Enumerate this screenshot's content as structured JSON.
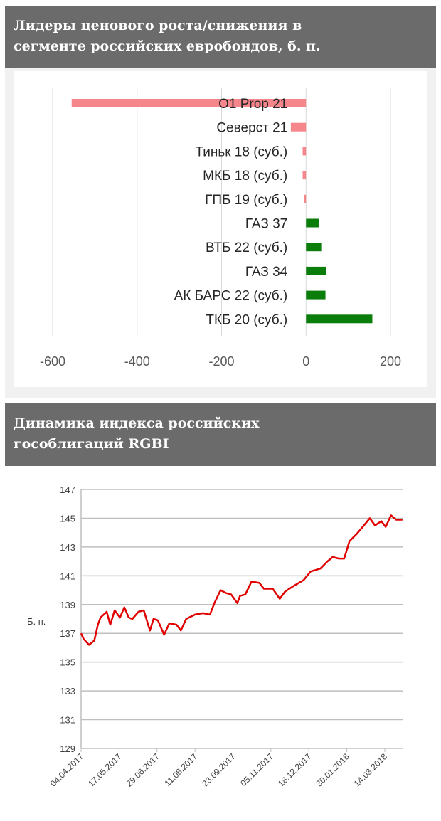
{
  "headers": {
    "bar_title": [
      "Лидеры ценового роста/снижения в",
      "сегменте российских евробондов, б. п."
    ],
    "line_title": [
      "Динамика индекса российских",
      "гособлигаций RGBI"
    ]
  },
  "chart_data": [
    {
      "type": "bar",
      "orientation": "horizontal",
      "categories": [
        "O1 Prop 21",
        "Северст 21",
        "Тиньк 18 (суб.)",
        "МКБ 18 (суб.)",
        "ГПБ 19 (суб.)",
        "ГАЗ 37",
        "ВТБ 22 (суб.)",
        "ГАЗ 34",
        "АК БАРС 22 (суб.)",
        "ТКБ 20 (суб.)"
      ],
      "values": [
        -555,
        -36,
        -8,
        -8,
        -4,
        31,
        36,
        48,
        46,
        157
      ],
      "xlim": [
        -600,
        200
      ],
      "xticks": [
        "-600",
        "-400",
        "-200",
        "0",
        "200"
      ],
      "grid": true,
      "colors": {
        "negative": "#f4868c",
        "positive": "#0a7d0a"
      }
    },
    {
      "type": "line",
      "ylabel": "Б. п.",
      "ylim": [
        129,
        147
      ],
      "yticks": [
        "147",
        "145",
        "143",
        "141",
        "139",
        "137",
        "135",
        "133",
        "131",
        "129"
      ],
      "xticks": [
        "04.04.2017",
        "17.05.2017",
        "29.06.2017",
        "11.08.2017",
        "23.09.2017",
        "05.11.2017",
        "18.12.2017",
        "30.01.2018",
        "14.03.2018"
      ],
      "grid": true,
      "color": "#e00000",
      "x": [
        "04.04.2017",
        "07.04.2017",
        "13.04.2017",
        "19.04.2017",
        "23.04.2017",
        "26.04.2017",
        "03.05.2017",
        "07.05.2017",
        "12.05.2017",
        "18.05.2017",
        "23.05.2017",
        "28.05.2017",
        "01.06.2017",
        "08.06.2017",
        "14.06.2017",
        "21.06.2017",
        "25.06.2017",
        "30.06.2017",
        "07.07.2017",
        "13.07.2017",
        "21.07.2017",
        "26.07.2017",
        "01.08.2017",
        "11.08.2017",
        "20.08.2017",
        "28.08.2017",
        "02.09.2017",
        "09.09.2017",
        "15.09.2017",
        "21.09.2017",
        "28.09.2017",
        "01.10.2017",
        "07.10.2017",
        "14.10.2017",
        "23.10.2017",
        "28.10.2017",
        "07.11.2017",
        "15.11.2017",
        "21.11.2017",
        "01.12.2017",
        "12.12.2017",
        "20.12.2017",
        "31.12.2017",
        "08.01.2018",
        "14.01.2018",
        "21.01.2018",
        "27.01.2018",
        "02.02.2018",
        "10.02.2018",
        "17.02.2018",
        "25.02.2018",
        "03.03.2018",
        "10.03.2018",
        "15.03.2018",
        "21.03.2018",
        "27.03.2018",
        "03.04.2018"
      ],
      "y": [
        137.0,
        136.6,
        136.2,
        136.5,
        137.6,
        138.1,
        138.5,
        137.6,
        138.6,
        138.1,
        138.8,
        138.1,
        138.0,
        138.5,
        138.6,
        137.2,
        138.0,
        137.9,
        136.9,
        137.7,
        137.6,
        137.2,
        138.0,
        138.3,
        138.4,
        138.3,
        139.1,
        140.0,
        139.8,
        139.7,
        139.1,
        139.6,
        139.7,
        140.6,
        140.5,
        140.1,
        140.1,
        139.4,
        139.9,
        140.3,
        140.7,
        141.3,
        141.5,
        142.0,
        142.3,
        142.2,
        142.2,
        143.4,
        143.9,
        144.4,
        145.0,
        144.5,
        144.8,
        144.4,
        145.2,
        144.9,
        144.9
      ]
    }
  ]
}
